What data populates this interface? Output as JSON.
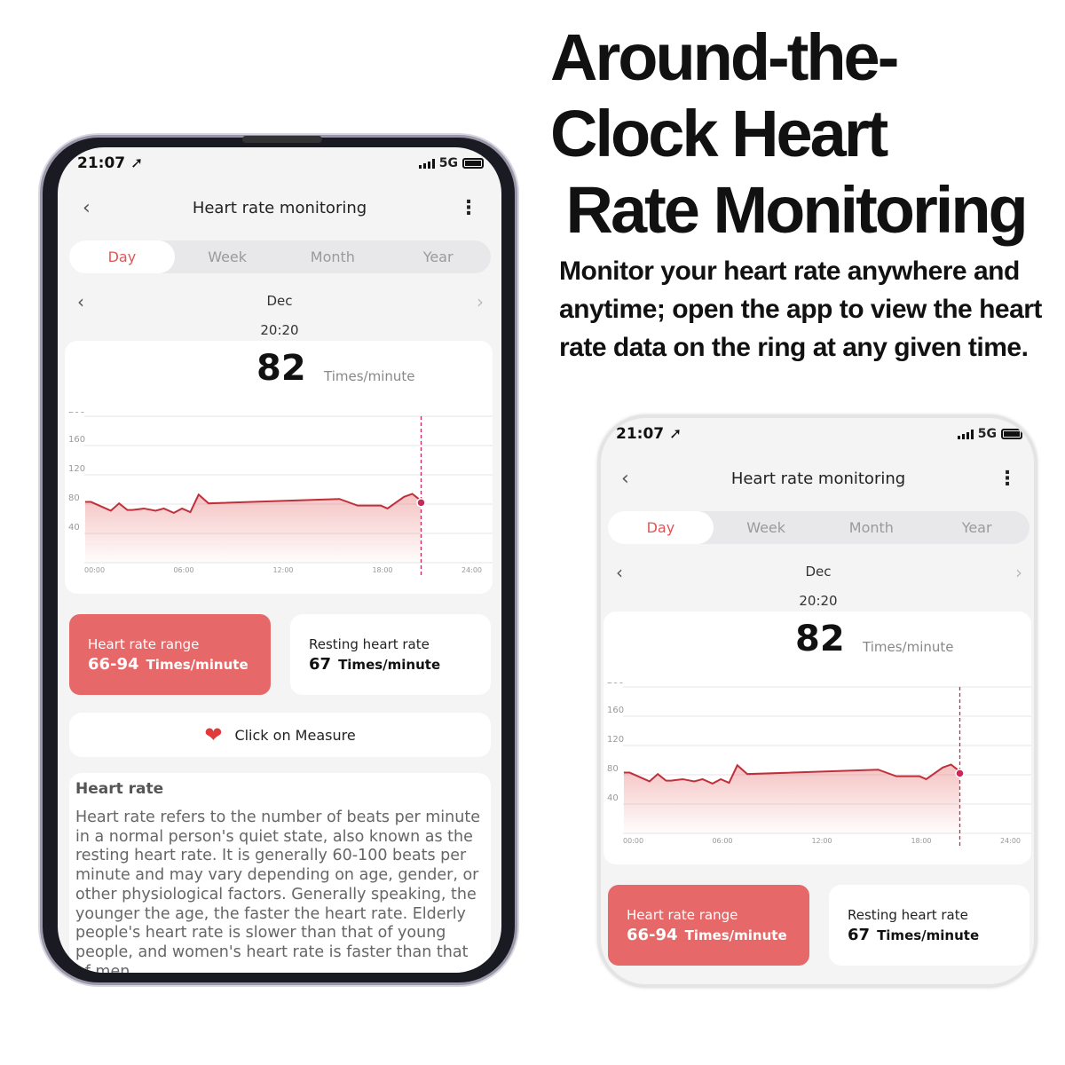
{
  "headline": {
    "lines": [
      "Around-the-",
      "Clock Heart",
      " Rate Monitoring"
    ],
    "description": "Monitor your heart rate anywhere and anytime; open the app to view the heart rate data on the ring at any given time."
  },
  "status_bar": {
    "time": "21:07",
    "location_icon": "location-arrow",
    "network": "5G"
  },
  "header": {
    "title": "Heart rate monitoring",
    "back_icon": "chevron-left",
    "more_icon": "more-vertical"
  },
  "tabs": [
    {
      "label": "Day",
      "active": true
    },
    {
      "label": "Week"
    },
    {
      "label": "Month"
    },
    {
      "label": "Year"
    }
  ],
  "date_nav": {
    "label": "Dec"
  },
  "selected_time": "20:20",
  "reading": {
    "value": "82",
    "unit": "Times/minute"
  },
  "colors": {
    "accent": "#e25555",
    "card_red": "#e76868",
    "line": "#c0303a",
    "marker": "#c8285a"
  },
  "chart_data": {
    "type": "area",
    "x_ticks": [
      "00:00",
      "06:00",
      "12:00",
      "18:00",
      "24:00"
    ],
    "y_ticks": [
      200,
      160,
      120,
      80,
      40
    ],
    "xlim": [
      0,
      24
    ],
    "ylim": [
      0,
      200
    ],
    "grid": true,
    "points": [
      [
        0.05,
        83
      ],
      [
        0.4,
        83
      ],
      [
        1.6,
        71
      ],
      [
        2.1,
        81
      ],
      [
        2.6,
        72
      ],
      [
        2.9,
        72
      ],
      [
        3.6,
        74
      ],
      [
        4.3,
        71
      ],
      [
        4.8,
        74
      ],
      [
        5.4,
        68
      ],
      [
        5.9,
        74
      ],
      [
        6.4,
        69
      ],
      [
        6.9,
        93
      ],
      [
        7.5,
        81
      ],
      [
        15.4,
        87
      ],
      [
        16.5,
        78
      ],
      [
        17.9,
        78
      ],
      [
        18.3,
        74
      ],
      [
        19.3,
        90
      ],
      [
        19.8,
        94
      ],
      [
        20.3,
        85
      ]
    ],
    "marker": {
      "x": 20.33,
      "y": 82
    }
  },
  "stats": {
    "range": {
      "label": "Heart rate range",
      "value": "66-94",
      "unit": "Times/minute"
    },
    "resting": {
      "label": "Resting heart rate",
      "value": "67",
      "unit": "Times/minute"
    }
  },
  "measure": {
    "label": "Click on Measure",
    "icon": "heart-pulse"
  },
  "info": {
    "title": "Heart rate",
    "body": "Heart rate refers to the number of beats per minute in a normal person's quiet state, also known as the resting heart rate. It is generally 60-100 beats per minute and may vary depending on age, gender, or other physiological factors. Generally speaking, the younger the age, the faster the heart rate. Elderly people's heart rate is slower than that of young people, and women's heart rate is faster than that of men"
  }
}
